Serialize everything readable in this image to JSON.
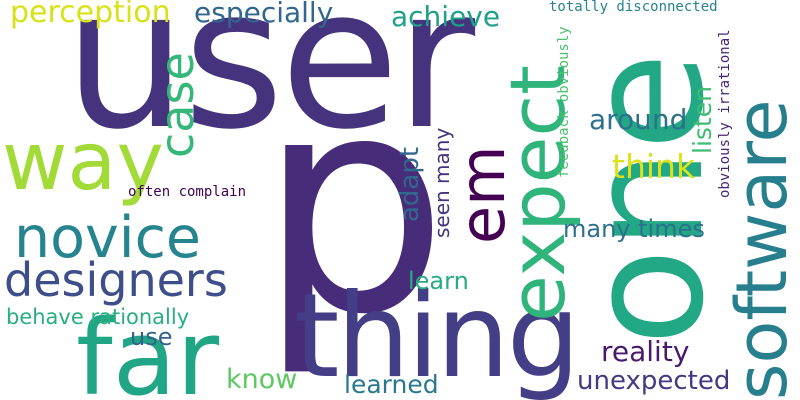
{
  "words": [
    {
      "key": "user",
      "text": "user",
      "color": "#46337e"
    },
    {
      "key": "p",
      "text": "p",
      "color": "#472c7a"
    },
    {
      "key": "one",
      "text": "one",
      "color": "#22a884"
    },
    {
      "key": "thing",
      "text": "thing",
      "color": "#433e85"
    },
    {
      "key": "expect",
      "text": "expect",
      "color": "#2fb47c"
    },
    {
      "key": "software",
      "text": "software",
      "color": "#277f8e"
    },
    {
      "key": "far",
      "text": "far",
      "color": "#21a685"
    },
    {
      "key": "way",
      "text": "way",
      "color": "#a2da37"
    },
    {
      "key": "novice",
      "text": "novice",
      "color": "#25848e"
    },
    {
      "key": "designers",
      "text": "designers",
      "color": "#3d4e8a"
    },
    {
      "key": "em",
      "text": "em",
      "color": "#440154"
    },
    {
      "key": "case",
      "text": "case",
      "color": "#35b779"
    },
    {
      "key": "perception",
      "text": "perception",
      "color": "#d8e219"
    },
    {
      "key": "especially",
      "text": "especially",
      "color": "#31668e"
    },
    {
      "key": "achieve",
      "text": "achieve",
      "color": "#1fa088"
    },
    {
      "key": "totally_disconnected",
      "text": "totally disconnected",
      "color": "#26828e"
    },
    {
      "key": "around",
      "text": "around",
      "color": "#2c728e"
    },
    {
      "key": "listen",
      "text": "listen",
      "color": "#3fbc73"
    },
    {
      "key": "think",
      "text": "think",
      "color": "#dde318"
    },
    {
      "key": "adapt",
      "text": "adapt",
      "color": "#31688e"
    },
    {
      "key": "seen_many",
      "text": "seen many",
      "color": "#46327e"
    },
    {
      "key": "feedback_obviously",
      "text": "feedback obviously",
      "color": "#4ac16d"
    },
    {
      "key": "obviously_irrational",
      "text": "obviously irrational",
      "color": "#482576"
    },
    {
      "key": "often_complain",
      "text": "often complain",
      "color": "#440154"
    },
    {
      "key": "many_times",
      "text": "many times",
      "color": "#2d708e"
    },
    {
      "key": "learn",
      "text": "learn",
      "color": "#27ad81"
    },
    {
      "key": "behave_rationally",
      "text": "behave rationally",
      "color": "#29af7f"
    },
    {
      "key": "use",
      "text": "use",
      "color": "#33638d"
    },
    {
      "key": "reality",
      "text": "reality",
      "color": "#481a6c"
    },
    {
      "key": "know",
      "text": "know",
      "color": "#5ec962"
    },
    {
      "key": "learned",
      "text": "learned",
      "color": "#2a788e"
    },
    {
      "key": "unexpected",
      "text": "unexpected",
      "color": "#443983"
    }
  ]
}
